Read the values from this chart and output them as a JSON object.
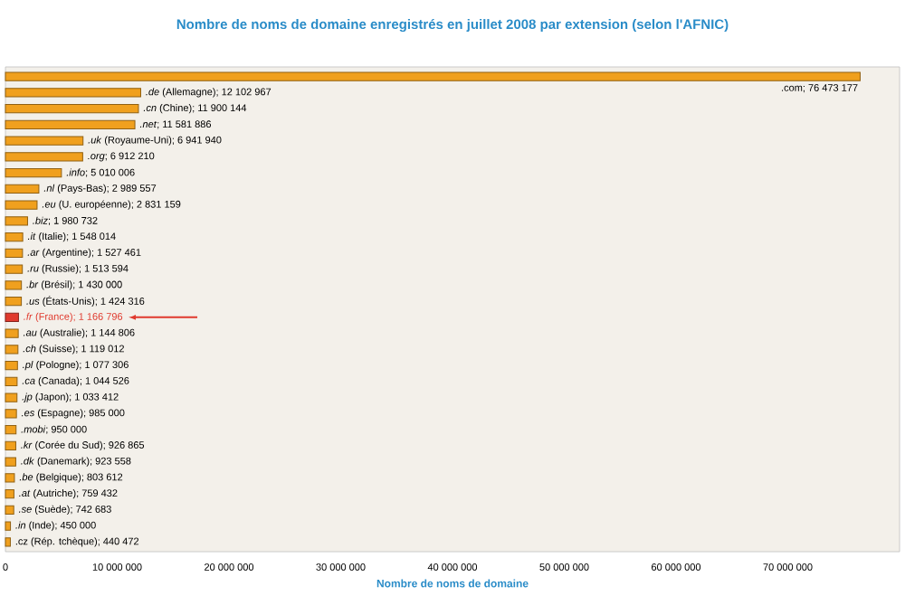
{
  "chart_data": {
    "type": "bar",
    "orientation": "horizontal",
    "title": "Nombre de noms de domaine enregistrés en juillet 2008 par extension (selon l'AFNIC)",
    "xlabel": "Nombre de noms de domaine",
    "categories": [
      null,
      null,
      null,
      null,
      null,
      null,
      null,
      null,
      null,
      null,
      null,
      null,
      null,
      null,
      null,
      null,
      null,
      null,
      null,
      null,
      null,
      null,
      null,
      null,
      null,
      null,
      null,
      null,
      null,
      null
    ],
    "values": [
      76473177,
      12102967,
      11900144,
      11581886,
      6941940,
      6912210,
      5010006,
      2989557,
      2831159,
      1980732,
      1548014,
      1527461,
      1513594,
      1430000,
      1424316,
      1166796,
      1144806,
      1119012,
      1077306,
      1044526,
      1033412,
      985000,
      950000,
      926865,
      923558,
      803612,
      759432,
      742683,
      450000,
      440472
    ],
    "value_labels": [
      ".com; 76 473 177",
      "*.de* (Allemagne); 12 102 967",
      "*.cn* (Chine); 11 900 144",
      "*.net*; 11 581 886",
      "*.uk* (Royaume-Uni); 6 941 940",
      "*.org*; 6 912 210",
      "*.info*; 5 010 006",
      "*.nl* (Pays-Bas); 2 989 557",
      "*.eu* (U. européenne); 2 831 159",
      "*.biz*; 1 980 732",
      "*.it* (Italie); 1 548 014",
      "*.ar* (Argentine); 1 527 461",
      "*.ru* (Russie); 1 513 594",
      "*.br* (Brésil); 1 430 000",
      "*.us* (États-Unis); 1 424 316",
      "*.fr* (France); 1 166 796",
      "*.au* (Australie); 1 144 806",
      "*.ch* (Suisse); 1 119 012",
      "*.pl* (Pologne); 1 077 306",
      "*.ca* (Canada); 1 044 526",
      "*.jp* (Japon); 1 033 412",
      "*.es* (Espagne); 985 000",
      "*.mobi*; 950 000",
      "*.kr* (Corée du Sud); 926 865",
      "*.dk* (Danemark); 923 558",
      "*.be* (Belgique); 803 612",
      "*.at* (Autriche); 759 432",
      "*.se* (Suède); 742 683",
      "*.in* (Inde); 450 000",
      ".cz (Rép. tchèque); 440 472"
    ],
    "color": "#f0a01e",
    "colors": [
      "#f0a01e",
      "#f0a01e",
      "#f0a01e",
      "#f0a01e",
      "#f0a01e",
      "#f0a01e",
      "#f0a01e",
      "#f0a01e",
      "#f0a01e",
      "#f0a01e",
      "#f0a01e",
      "#f0a01e",
      "#f0a01e",
      "#f0a01e",
      "#f0a01e",
      "#e03a2e",
      "#f0a01e",
      "#f0a01e",
      "#f0a01e",
      "#f0a01e",
      "#f0a01e",
      "#f0a01e",
      "#f0a01e",
      "#f0a01e",
      "#f0a01e",
      "#f0a01e",
      "#f0a01e",
      "#f0a01e",
      "#f0a01e",
      "#f0a01e"
    ],
    "xlim": [
      0,
      80000000
    ],
    "xticks": [
      0,
      {
        "value": 10000000,
        "label": "10 000 000"
      },
      {
        "value": 20000000,
        "label": "20 000 000"
      },
      {
        "value": 30000000,
        "label": "30 000 000"
      },
      {
        "value": 40000000,
        "label": "40 000 000"
      },
      {
        "value": 50000000,
        "label": "50 000 000"
      },
      {
        "value": 60000000,
        "label": "60 000 000"
      },
      {
        "value": 70000000,
        "label": "70 000 000"
      }
    ],
    "grid": false
  }
}
